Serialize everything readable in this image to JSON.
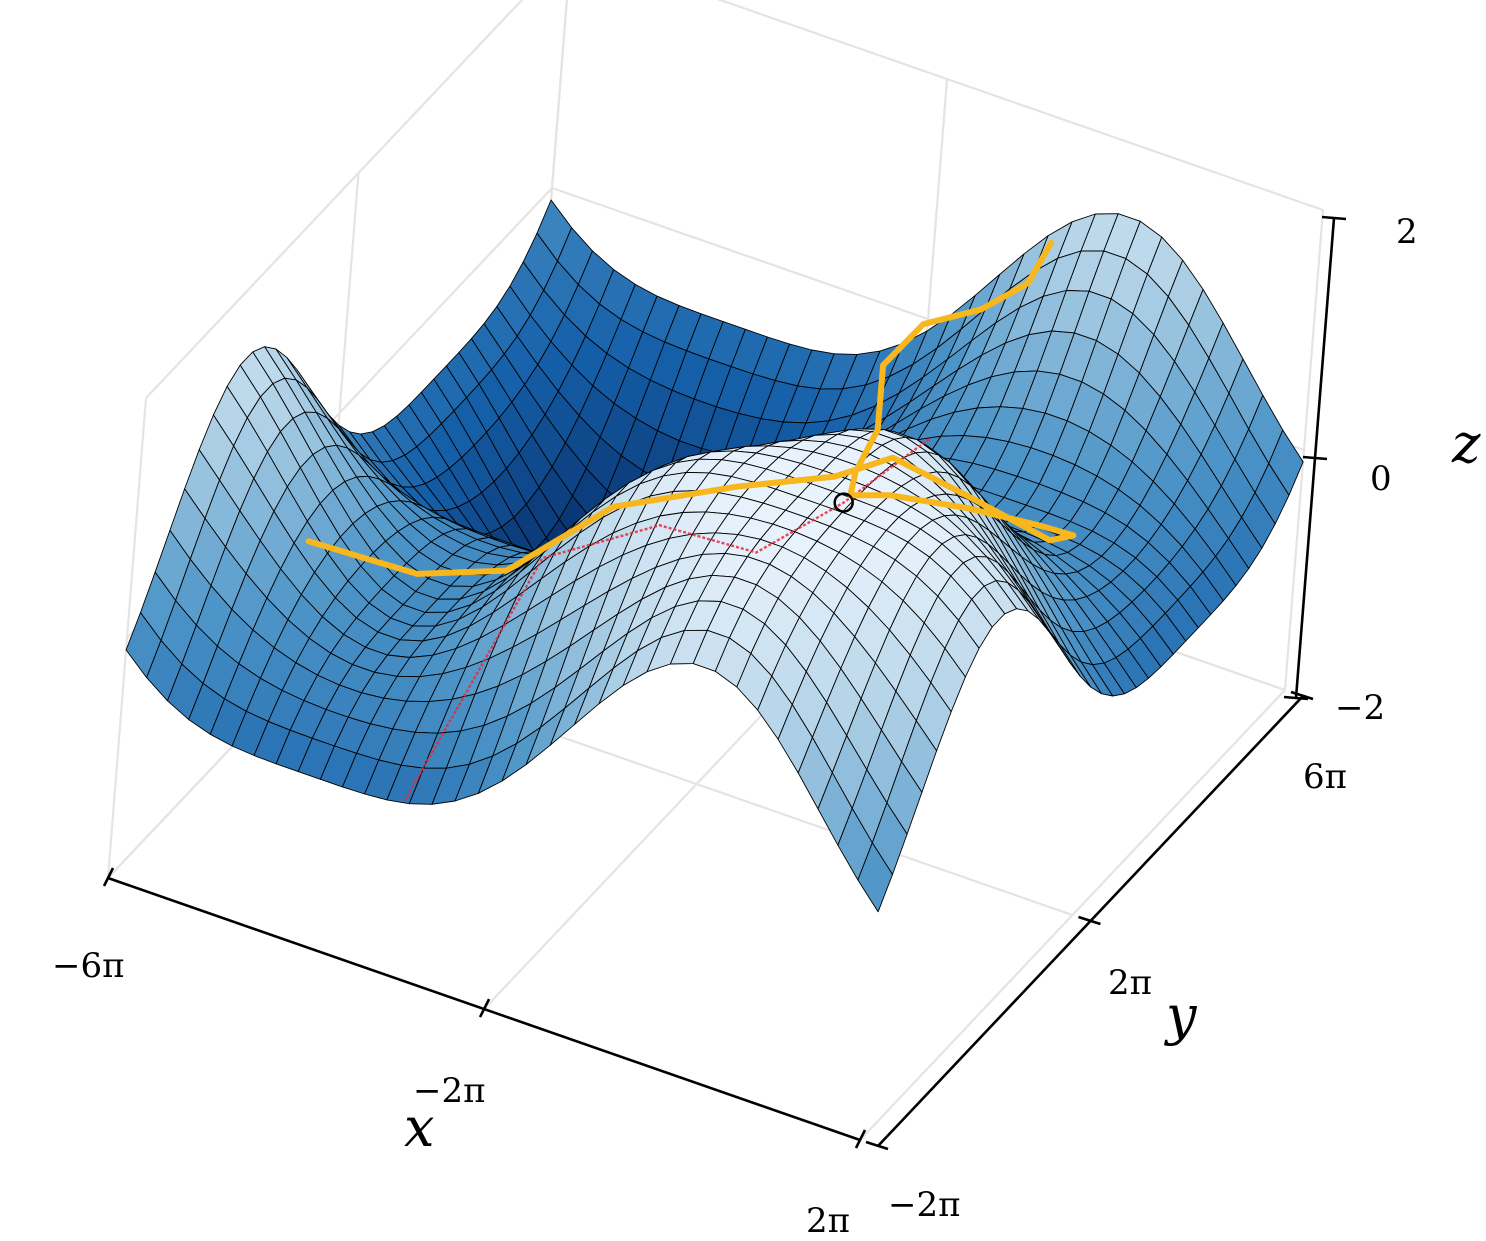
{
  "chart_data": {
    "type": "surface3d",
    "title": "",
    "xlabel": "x",
    "ylabel": "y",
    "zlabel": "z",
    "x_ticks": [
      "−6π",
      "−2π",
      "2π"
    ],
    "y_ticks": [
      "−2π",
      "2π",
      "6π"
    ],
    "z_ticks": [
      "−2",
      "0",
      "2"
    ],
    "xlim": [
      -18.85,
      6.28
    ],
    "ylim": [
      -6.28,
      18.85
    ],
    "zlim": [
      -2,
      2
    ],
    "colormap": "Blues",
    "grid": true,
    "trajectories": [
      {
        "color": "#f7b71d",
        "points": [
          [
            -15.6,
            -1.5
          ],
          [
            -13.2,
            0.9
          ],
          [
            -10.5,
            1.3
          ],
          [
            -7.6,
            2.1
          ],
          [
            -4.8,
            4.4
          ],
          [
            -3.0,
            7.1
          ],
          [
            -1.4,
            7.6
          ],
          [
            0.4,
            9.2
          ],
          [
            2.0,
            11.4
          ],
          [
            2.3,
            12.3
          ],
          [
            1.2,
            12.1
          ],
          [
            -0.8,
            11.5
          ],
          [
            -3.2,
            11.2
          ],
          [
            -4.7,
            11.6
          ],
          [
            -5.5,
            13.4
          ],
          [
            -6.2,
            16.0
          ],
          [
            -7.4,
            18.4
          ],
          [
            -6.5,
            19.0
          ],
          [
            -4.2,
            18.1
          ],
          [
            -2.6,
            17.8
          ],
          [
            -2.3,
            18.5
          ]
        ]
      }
    ],
    "red_path": {
      "color": "#e8293a",
      "points": [
        [
          -9.4,
          -6.28
        ],
        [
          -8.2,
          -1.0
        ],
        [
          -7.0,
          4.0
        ],
        [
          -5.8,
          8.0
        ],
        [
          -4.7,
          11.2
        ],
        [
          -3.6,
          14.3
        ]
      ]
    },
    "start_marker": {
      "x": -4.7,
      "y": 11.2
    }
  }
}
